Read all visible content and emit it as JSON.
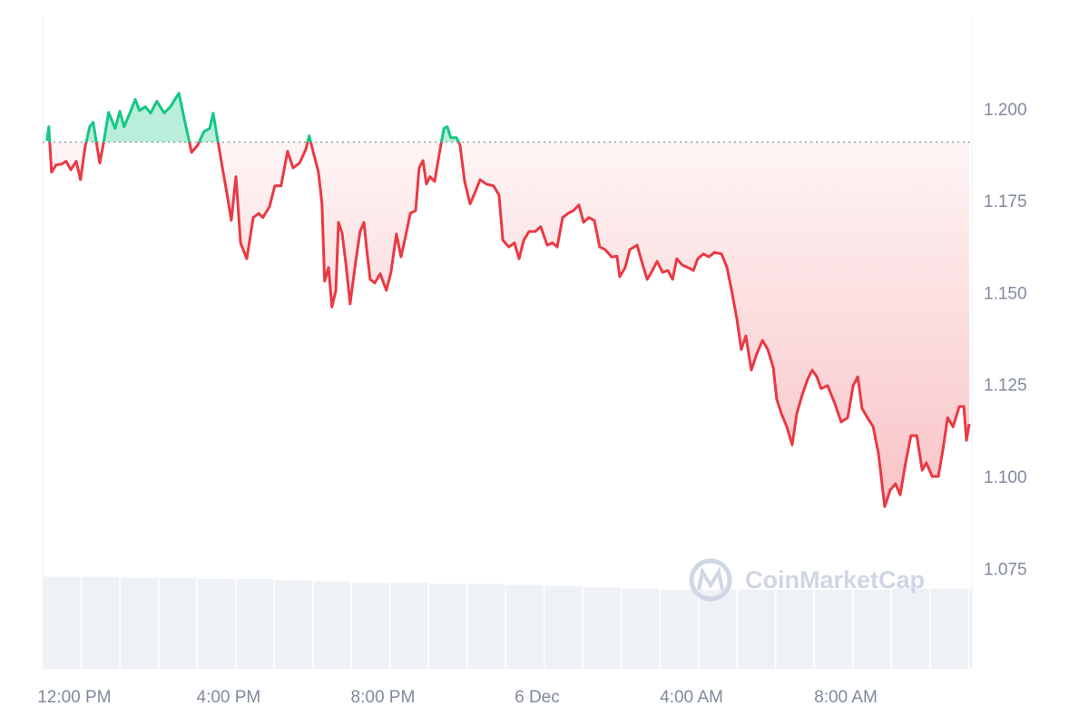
{
  "chart_data": {
    "type": "line",
    "x": [
      -0.71,
      -0.66,
      -0.59,
      -0.47,
      -0.33,
      -0.21,
      -0.09,
      0.05,
      0.16,
      0.28,
      0.4,
      0.49,
      0.66,
      0.75,
      0.89,
      1.06,
      1.18,
      1.29,
      1.44,
      1.58,
      1.69,
      1.84,
      1.98,
      2.14,
      2.33,
      2.49,
      2.71,
      2.87,
      3.04,
      3.2,
      3.36,
      3.51,
      3.6,
      3.72,
      3.86,
      3.95,
      4.07,
      4.19,
      4.31,
      4.47,
      4.64,
      4.78,
      4.89,
      5.06,
      5.2,
      5.36,
      5.53,
      5.67,
      5.84,
      6.0,
      6.09,
      6.21,
      6.33,
      6.42,
      6.49,
      6.59,
      6.68,
      6.78,
      6.85,
      6.94,
      7.04,
      7.15,
      7.29,
      7.41,
      7.51,
      7.58,
      7.67,
      7.79,
      7.93,
      8.09,
      8.21,
      8.35,
      8.47,
      8.59,
      8.71,
      8.85,
      8.94,
      9.04,
      9.13,
      9.22,
      9.34,
      9.46,
      9.58,
      9.67,
      9.76,
      9.91,
      10.0,
      10.12,
      10.26,
      10.38,
      10.52,
      10.68,
      10.87,
      11.01,
      11.11,
      11.27,
      11.41,
      11.53,
      11.65,
      11.79,
      11.95,
      12.09,
      12.26,
      12.4,
      12.52,
      12.66,
      12.8,
      12.94,
      13.08,
      13.2,
      13.34,
      13.48,
      13.62,
      13.76,
      13.93,
      14.07,
      14.14,
      14.28,
      14.4,
      14.59,
      14.71,
      14.85,
      14.96,
      15.11,
      15.25,
      15.39,
      15.51,
      15.62,
      15.76,
      15.91,
      16.05,
      16.16,
      16.31,
      16.45,
      16.59,
      16.78,
      16.92,
      17.04,
      17.18,
      17.29,
      17.41,
      17.55,
      17.69,
      17.84,
      17.98,
      18.12,
      18.21,
      18.33,
      18.47,
      18.61,
      18.73,
      18.87,
      19.01,
      19.13,
      19.25,
      19.36,
      19.53,
      19.72,
      19.88,
      20.05,
      20.19,
      20.31,
      20.42,
      20.56,
      20.71,
      20.85,
      21.01,
      21.15,
      21.29,
      21.41,
      21.55,
      21.69,
      21.84,
      21.98,
      22.09,
      22.24,
      22.4,
      22.52,
      22.64,
      22.78,
      22.94,
      23.06,
      23.13,
      23.2
    ],
    "series": [
      {
        "color": "#ea3943",
        "up_color": "#16c784",
        "values": [
          1.1918,
          1.1956,
          1.1832,
          1.1852,
          1.1854,
          1.1862,
          1.1839,
          1.1862,
          1.1812,
          1.1901,
          1.1956,
          1.1968,
          1.1857,
          1.1906,
          1.1995,
          1.1951,
          1.1998,
          1.1956,
          1.1993,
          1.203,
          1.2,
          1.201,
          1.1993,
          1.2025,
          1.1993,
          1.201,
          1.2047,
          1.1968,
          1.1886,
          1.1906,
          1.1943,
          1.1951,
          1.1993,
          1.1918,
          1.1832,
          1.1778,
          1.1701,
          1.182,
          1.164,
          1.1597,
          1.1709,
          1.172,
          1.1709,
          1.1738,
          1.1795,
          1.1795,
          1.1889,
          1.1844,
          1.1857,
          1.1894,
          1.1931,
          1.1881,
          1.1832,
          1.1746,
          1.1536,
          1.1573,
          1.1466,
          1.1511,
          1.1696,
          1.1667,
          1.1585,
          1.1474,
          1.1585,
          1.1671,
          1.1696,
          1.1622,
          1.1541,
          1.1531,
          1.1556,
          1.1511,
          1.156,
          1.1664,
          1.1602,
          1.1659,
          1.172,
          1.1728,
          1.1844,
          1.1864,
          1.18,
          1.182,
          1.1807,
          1.1881,
          1.1951,
          1.1956,
          1.1926,
          1.1926,
          1.1906,
          1.1807,
          1.1746,
          1.1775,
          1.1812,
          1.18,
          1.1795,
          1.177,
          1.1647,
          1.1629,
          1.164,
          1.1597,
          1.1647,
          1.1671,
          1.1671,
          1.1684,
          1.1634,
          1.164,
          1.1629,
          1.1709,
          1.172,
          1.1728,
          1.1743,
          1.1696,
          1.1709,
          1.1701,
          1.1629,
          1.1622,
          1.1602,
          1.1604,
          1.1548,
          1.1573,
          1.1622,
          1.1634,
          1.159,
          1.1541,
          1.156,
          1.159,
          1.156,
          1.1565,
          1.1541,
          1.1597,
          1.158,
          1.1573,
          1.1565,
          1.1597,
          1.161,
          1.1602,
          1.1614,
          1.161,
          1.1573,
          1.1511,
          1.1432,
          1.135,
          1.1387,
          1.1294,
          1.1338,
          1.1375,
          1.135,
          1.1301,
          1.1215,
          1.1176,
          1.114,
          1.1091,
          1.1176,
          1.1227,
          1.1269,
          1.1294,
          1.1276,
          1.1244,
          1.1252,
          1.1202,
          1.1153,
          1.1165,
          1.1252,
          1.1276,
          1.119,
          1.1165,
          1.114,
          1.1066,
          1.0923,
          1.0968,
          1.0985,
          1.0955,
          1.1042,
          1.1116,
          1.1116,
          1.1022,
          1.1042,
          1.1005,
          1.1005,
          1.1079,
          1.1165,
          1.114,
          1.1195,
          1.1195,
          1.1103,
          1.1148
        ]
      },
      {
        "axis": "y2",
        "color": "#eef1f5",
        "x": [
          -0.8,
          0.2,
          1.2,
          2.2,
          3.2,
          4.2,
          5.2,
          6.2,
          7.2,
          8.2,
          9.2,
          10.2,
          11.2,
          12.2,
          13.2,
          14.2,
          15.2,
          16.2,
          17.2,
          18.2,
          19.2,
          20.2,
          21.2,
          22.2,
          23.2
        ],
        "values": [
          78,
          78,
          77,
          77,
          76,
          76,
          75,
          74,
          73,
          73,
          72,
          72,
          71,
          70,
          69,
          68,
          67,
          67,
          67,
          67,
          67,
          67,
          68,
          68,
          67
        ]
      }
    ],
    "reference": 1.1914,
    "xlim": [
      -0.82,
      23.27
    ],
    "xticks": [
      {
        "value": 0,
        "label": "12:00 PM"
      },
      {
        "value": 4,
        "label": "4:00 PM"
      },
      {
        "value": 8,
        "label": "8:00 PM"
      },
      {
        "value": 12,
        "label": "6 Dec"
      },
      {
        "value": 16,
        "label": "4:00 AM"
      },
      {
        "value": 20,
        "label": "8:00 AM"
      }
    ],
    "ylim": [
      1.0482,
      1.2256
    ],
    "yticks": [
      {
        "value": 1.075,
        "label": "1.075"
      },
      {
        "value": 1.1,
        "label": "1.100"
      },
      {
        "value": 1.125,
        "label": "1.125"
      },
      {
        "value": 1.15,
        "label": "1.150"
      },
      {
        "value": 1.175,
        "label": "1.175"
      },
      {
        "value": 1.2,
        "label": "1.200"
      }
    ],
    "y2lim": [
      0,
      100
    ],
    "grid": true,
    "watermark": "CoinMarketCap"
  }
}
